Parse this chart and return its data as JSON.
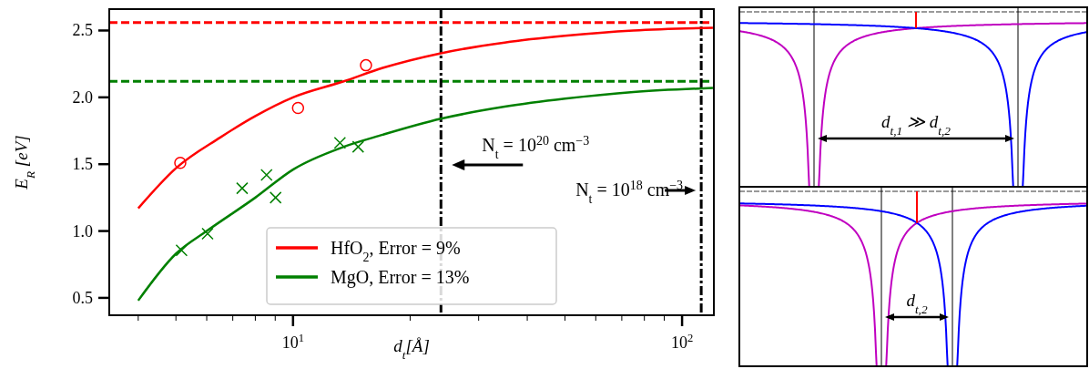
{
  "chart_data": [
    {
      "type": "line",
      "xlabel": "d$_{t}$[Å]",
      "ylabel": "E$_{R}$ [eV]",
      "log": "x",
      "grid": false,
      "legend": "bottom",
      "xlim": [
        3.37,
        120.7
      ],
      "ylim": [
        0.37,
        2.66
      ],
      "xticks": [
        {
          "value": 4,
          "label": null
        },
        {
          "value": 5,
          "label": null
        },
        {
          "value": 6,
          "label": null
        },
        {
          "value": 7,
          "label": null
        },
        {
          "value": 8,
          "label": null
        },
        {
          "value": 9,
          "label": null
        },
        {
          "value": 10,
          "label": "10$^{1}$"
        },
        {
          "value": 20,
          "label": null
        },
        {
          "value": 30,
          "label": null
        },
        {
          "value": 40,
          "label": null
        },
        {
          "value": 50,
          "label": null
        },
        {
          "value": 60,
          "label": null
        },
        {
          "value": 70,
          "label": null
        },
        {
          "value": 80,
          "label": null
        },
        {
          "value": 90,
          "label": null
        },
        {
          "value": 100,
          "label": "10$^{2}$"
        }
      ],
      "yticks": [
        0.5,
        {
          "value": 1,
          "label": "1.0"
        },
        1.5,
        {
          "value": 2,
          "label": "2.0"
        },
        2.5
      ],
      "series": [
        {
          "name": "HfO$_{2}$, Error = 9%",
          "type": "line",
          "color": "#ff0000",
          "x": [
            4,
            5,
            6.5,
            8,
            10,
            13.5,
            17,
            24,
            35,
            50,
            75,
            120
          ],
          "values": [
            1.17,
            1.47,
            1.7,
            1.86,
            2.0,
            2.12,
            2.22,
            2.33,
            2.41,
            2.46,
            2.5,
            2.52
          ]
        },
        {
          "name": "MgO, Error = 13%",
          "type": "line",
          "color": "#008000",
          "x": [
            4,
            5,
            6,
            8,
            10,
            13.5,
            17,
            24,
            35,
            50,
            75,
            120
          ],
          "values": [
            0.48,
            0.83,
            1.0,
            1.25,
            1.46,
            1.63,
            1.72,
            1.84,
            1.93,
            1.99,
            2.04,
            2.07
          ]
        },
        {
          "type": "scatter",
          "color": "#ff0000",
          "marker": "circle",
          "x": [
            5.13,
            10.3,
            15.4
          ],
          "values": [
            1.51,
            1.92,
            2.24
          ]
        },
        {
          "type": "scatter",
          "color": "#008000",
          "marker": "cross",
          "x": [
            5.17,
            6.03,
            7.4,
            8.55,
            9.02,
            13.2,
            14.7
          ],
          "values": [
            0.855,
            0.98,
            1.32,
            1.42,
            1.25,
            1.66,
            1.63
          ]
        }
      ],
      "ref_lines": [
        {
          "axis": "y",
          "value": 2.56,
          "color": "#ff0000",
          "line_style": "dashed"
        },
        {
          "axis": "y",
          "value": 2.12,
          "color": "#008000",
          "line_style": "dashed"
        },
        {
          "axis": "x",
          "value": 24,
          "color": "#000000",
          "line_style": "dashdot"
        },
        {
          "axis": "x",
          "value": 112,
          "color": "#000000",
          "line_style": "dashdot"
        }
      ],
      "annotations": [
        "N$_{t}$ = 10$^{20}$ cm$^{−3}$",
        "N$_{t}$ = 10$^{18}$ cm$^{−3}$"
      ]
    },
    {
      "type": "other",
      "annotations": [
        "d$_{t,1}$ ≫ d$_{t,2}$"
      ]
    },
    {
      "type": "other",
      "annotations": [
        "d$_{t,2}$"
      ]
    }
  ]
}
